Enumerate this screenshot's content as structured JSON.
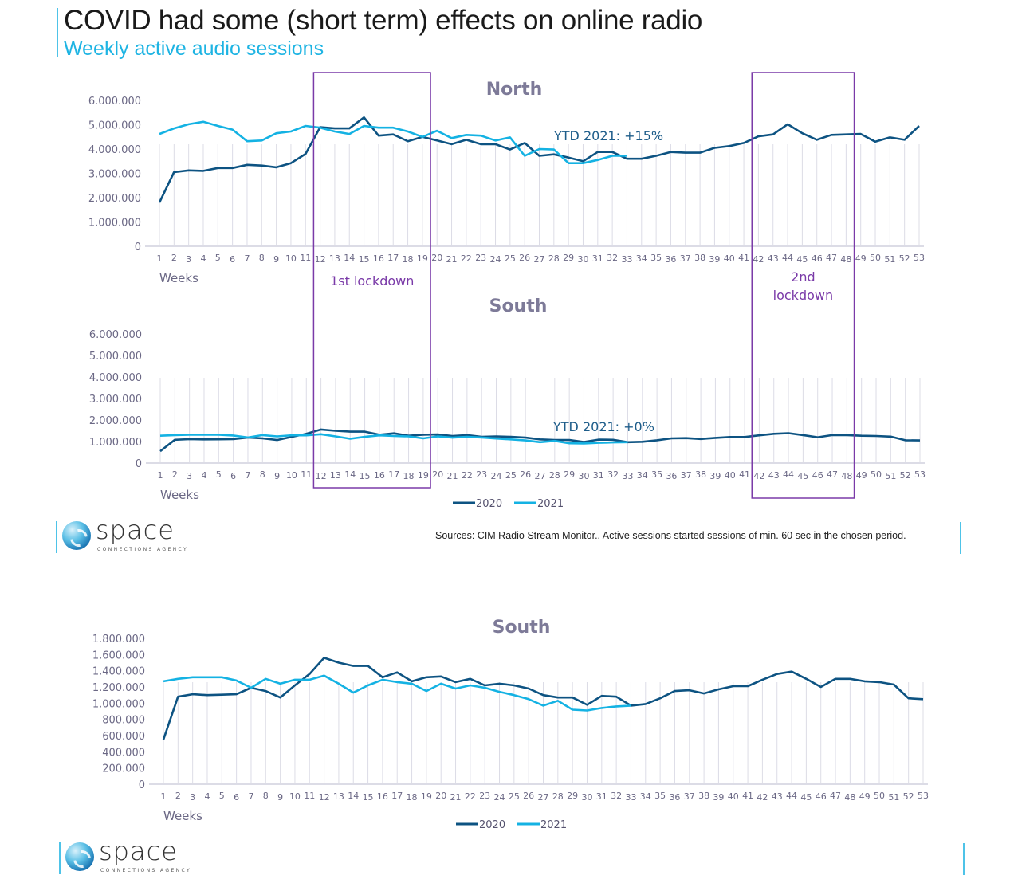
{
  "header": {
    "title": "COVID had some (short term) effects on online radio",
    "subtitle": "Weekly active audio sessions"
  },
  "colors": {
    "series_2020": "#0d5382",
    "series_2021": "#14b2e3",
    "lockdown_box": "#7a3aa8",
    "accent_line": "#4ec3e8",
    "grid": "#dcdce6"
  },
  "annotations": {
    "lockdown_1": "1st lockdown",
    "lockdown_2_line1": "2nd",
    "lockdown_2_line2": "lockdown",
    "lockdown_1_weeks": [
      12,
      19
    ],
    "lockdown_2_weeks": [
      42,
      48
    ]
  },
  "legend": {
    "items": [
      "2020",
      "2021"
    ]
  },
  "footer": {
    "source": "Sources: CIM Radio Stream Monitor.. Active sessions started sessions of min. 60 sec in the chosen period.",
    "logo_name": "space",
    "logo_tagline": "CONNECTIONS AGENCY"
  },
  "chart_data": [
    {
      "id": "north",
      "type": "line",
      "title": "North",
      "xlabel": "Weeks",
      "ylabel": "",
      "annotation": "YTD 2021: +15%",
      "ylim": [
        0,
        6000000
      ],
      "yticks": [
        0,
        1000000,
        2000000,
        3000000,
        4000000,
        5000000,
        6000000
      ],
      "ytick_labels": [
        "0",
        "1.000.000",
        "2.000.000",
        "3.000.000",
        "4.000.000",
        "5.000.000",
        "6.000.000"
      ],
      "x": [
        1,
        2,
        3,
        4,
        5,
        6,
        7,
        8,
        9,
        10,
        11,
        12,
        13,
        14,
        15,
        16,
        17,
        18,
        19,
        20,
        21,
        22,
        23,
        24,
        25,
        26,
        27,
        28,
        29,
        30,
        31,
        32,
        33,
        34,
        35,
        36,
        37,
        38,
        39,
        40,
        41,
        42,
        43,
        44,
        45,
        46,
        47,
        48,
        49,
        50,
        51,
        52,
        53
      ],
      "grid": "vertical",
      "legend": "none",
      "series": [
        {
          "name": "2020",
          "values": [
            1800000,
            3050000,
            3120000,
            3100000,
            3220000,
            3220000,
            3350000,
            3320000,
            3250000,
            3420000,
            3800000,
            4900000,
            4850000,
            4850000,
            5300000,
            4550000,
            4600000,
            4320000,
            4500000,
            4350000,
            4200000,
            4380000,
            4200000,
            4200000,
            3980000,
            4250000,
            3720000,
            3780000,
            3650000,
            3500000,
            3880000,
            3880000,
            3600000,
            3600000,
            3720000,
            3880000,
            3850000,
            3850000,
            4050000,
            4120000,
            4250000,
            4520000,
            4600000,
            5020000,
            4650000,
            4380000,
            4580000,
            4600000,
            4620000,
            4300000,
            4480000,
            4380000,
            4950000
          ]
        },
        {
          "name": "2021",
          "values": [
            4620000,
            4850000,
            5020000,
            5120000,
            4950000,
            4800000,
            4320000,
            4350000,
            4650000,
            4720000,
            4950000,
            4880000,
            4720000,
            4620000,
            4950000,
            4880000,
            4880000,
            4720000,
            4500000,
            4750000,
            4450000,
            4580000,
            4550000,
            4350000,
            4480000,
            3720000,
            4000000,
            3980000,
            3420000,
            3420000,
            3550000,
            3720000,
            3720000
          ]
        }
      ]
    },
    {
      "id": "south_small",
      "type": "line",
      "title": "South",
      "xlabel": "Weeks",
      "ylabel": "",
      "annotation": "YTD 2021: +0%",
      "ylim": [
        0,
        6000000
      ],
      "yticks": [
        0,
        1000000,
        2000000,
        3000000,
        4000000,
        5000000,
        6000000
      ],
      "ytick_labels": [
        "0",
        "1.000.000",
        "2.000.000",
        "3.000.000",
        "4.000.000",
        "5.000.000",
        "6.000.000"
      ],
      "x": [
        1,
        2,
        3,
        4,
        5,
        6,
        7,
        8,
        9,
        10,
        11,
        12,
        13,
        14,
        15,
        16,
        17,
        18,
        19,
        20,
        21,
        22,
        23,
        24,
        25,
        26,
        27,
        28,
        29,
        30,
        31,
        32,
        33,
        34,
        35,
        36,
        37,
        38,
        39,
        40,
        41,
        42,
        43,
        44,
        45,
        46,
        47,
        48,
        49,
        50,
        51,
        52,
        53
      ],
      "grid": "vertical",
      "legend": "bottom",
      "series": [
        {
          "name": "2020",
          "values": [
            550000,
            1080000,
            1110000,
            1100000,
            1105000,
            1110000,
            1190000,
            1150000,
            1070000,
            1220000,
            1360000,
            1560000,
            1500000,
            1460000,
            1460000,
            1320000,
            1380000,
            1270000,
            1320000,
            1330000,
            1260000,
            1300000,
            1220000,
            1240000,
            1220000,
            1180000,
            1100000,
            1070000,
            1070000,
            980000,
            1090000,
            1080000,
            970000,
            990000,
            1060000,
            1150000,
            1160000,
            1120000,
            1170000,
            1210000,
            1210000,
            1290000,
            1360000,
            1390000,
            1300000,
            1200000,
            1300000,
            1300000,
            1270000,
            1260000,
            1230000,
            1060000,
            1050000
          ]
        },
        {
          "name": "2021",
          "values": [
            1270000,
            1300000,
            1320000,
            1320000,
            1320000,
            1280000,
            1190000,
            1300000,
            1240000,
            1290000,
            1290000,
            1340000,
            1240000,
            1130000,
            1220000,
            1290000,
            1260000,
            1240000,
            1150000,
            1240000,
            1180000,
            1220000,
            1190000,
            1140000,
            1100000,
            1050000,
            970000,
            1030000,
            920000,
            910000,
            940000,
            960000,
            970000
          ]
        }
      ]
    },
    {
      "id": "south_large",
      "type": "line",
      "title": "South",
      "xlabel": "Weeks",
      "ylabel": "",
      "ylim": [
        0,
        1800000
      ],
      "yticks": [
        0,
        200000,
        400000,
        600000,
        800000,
        1000000,
        1200000,
        1400000,
        1600000,
        1800000
      ],
      "ytick_labels": [
        "0",
        "200.000",
        "400.000",
        "600.000",
        "800.000",
        "1.000.000",
        "1.200.000",
        "1.400.000",
        "1.600.000",
        "1.800.000"
      ],
      "x": [
        1,
        2,
        3,
        4,
        5,
        6,
        7,
        8,
        9,
        10,
        11,
        12,
        13,
        14,
        15,
        16,
        17,
        18,
        19,
        20,
        21,
        22,
        23,
        24,
        25,
        26,
        27,
        28,
        29,
        30,
        31,
        32,
        33,
        34,
        35,
        36,
        37,
        38,
        39,
        40,
        41,
        42,
        43,
        44,
        45,
        46,
        47,
        48,
        49,
        50,
        51,
        52,
        53
      ],
      "grid": "vertical",
      "legend": "bottom",
      "series": [
        {
          "name": "2020",
          "values": [
            550000,
            1080000,
            1110000,
            1100000,
            1105000,
            1110000,
            1190000,
            1150000,
            1070000,
            1220000,
            1360000,
            1560000,
            1500000,
            1460000,
            1460000,
            1320000,
            1380000,
            1270000,
            1320000,
            1330000,
            1260000,
            1300000,
            1220000,
            1240000,
            1220000,
            1180000,
            1100000,
            1070000,
            1070000,
            980000,
            1090000,
            1080000,
            970000,
            990000,
            1060000,
            1150000,
            1160000,
            1120000,
            1170000,
            1210000,
            1210000,
            1290000,
            1360000,
            1390000,
            1300000,
            1200000,
            1300000,
            1300000,
            1270000,
            1260000,
            1230000,
            1060000,
            1050000
          ]
        },
        {
          "name": "2021",
          "values": [
            1270000,
            1300000,
            1320000,
            1320000,
            1320000,
            1280000,
            1190000,
            1300000,
            1240000,
            1290000,
            1290000,
            1340000,
            1240000,
            1130000,
            1220000,
            1290000,
            1260000,
            1240000,
            1150000,
            1240000,
            1180000,
            1220000,
            1190000,
            1140000,
            1100000,
            1050000,
            970000,
            1030000,
            920000,
            910000,
            940000,
            960000,
            970000
          ]
        }
      ]
    }
  ]
}
